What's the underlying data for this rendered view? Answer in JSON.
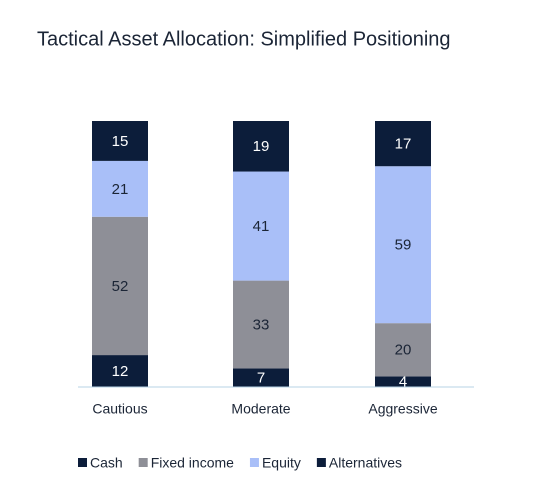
{
  "chart_data": {
    "type": "stacked_bar",
    "title": "Tactical Asset Allocation: Simplified Positioning",
    "categories": [
      "Cautious",
      "Moderate",
      "Aggressive"
    ],
    "series": [
      {
        "name": "Cash",
        "color": "#0c1d3a",
        "values": [
          12,
          7,
          4
        ]
      },
      {
        "name": "Fixed income",
        "color": "#8e8f97",
        "values": [
          52,
          33,
          20
        ]
      },
      {
        "name": "Equity",
        "color": "#a9bff8",
        "values": [
          21,
          41,
          59
        ]
      },
      {
        "name": "Alternatives",
        "color": "#0c1d3a",
        "values": [
          15,
          19,
          17
        ]
      }
    ],
    "ylim": [
      0,
      100
    ],
    "legend": "bottom"
  }
}
